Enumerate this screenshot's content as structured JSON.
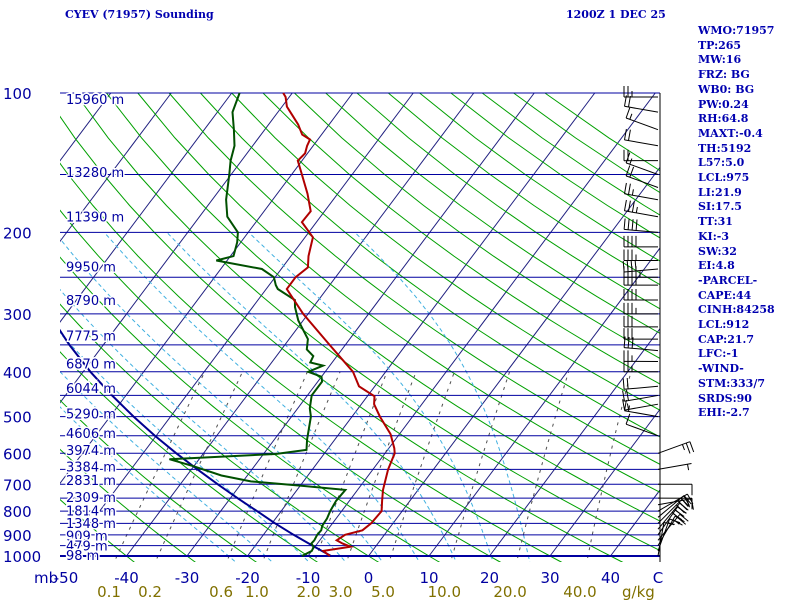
{
  "header": {
    "title": "CYEV (71957) Sounding",
    "time": "1200Z  1 DEC 25"
  },
  "stats": [
    "WMO:71957",
    "TP:265",
    "MW:16",
    "FRZ: BG",
    "WB0: BG",
    "PW:0.24",
    "RH:64.8",
    "MAXT:-0.4",
    "TH:5192",
    "L57:5.0",
    "LCL:975",
    "LI:21.9",
    "SI:17.5",
    "TT:31",
    "KI:-3",
    "SW:32",
    "EI:4.8",
    "-PARCEL-",
    "CAPE:44",
    "CINH:84258",
    "LCL:912",
    "CAP:21.7",
    "LFC:-1",
    "-WIND-",
    "STM:333/7",
    "SRDS:90",
    "EHI:-2.7"
  ],
  "colors": {
    "isobar": "#0000a0",
    "temperature": "#b00000",
    "dewpoint": "#005000",
    "parcel": "#000090",
    "dry_adiabat": "#00a000",
    "moist_adiabat": "#40b0e0",
    "mixing_ratio": "#505050",
    "isotherm": "#202080",
    "mixing_ratio_label": "#807000",
    "label": "#0000a0"
  },
  "chart_data": {
    "type": "skew-t",
    "title": "CYEV (71957) Sounding",
    "pressure_range_mb": [
      1000,
      100
    ],
    "temperature_range_c": [
      -50,
      50
    ],
    "pressure_ticks": [
      100,
      200,
      300,
      400,
      500,
      600,
      700,
      800,
      900,
      1000
    ],
    "pressure_unit": "mb",
    "temperature_ticks": [
      -50,
      -40,
      -30,
      -20,
      -10,
      0,
      10,
      20,
      30,
      40
    ],
    "temperature_axis_end_label": "C",
    "mixing_ratio_ticks": [
      "0.1",
      "0.2",
      "0.6",
      "1.0",
      "2.0",
      "3.0",
      "5.0",
      "10.0",
      "20.0",
      "40.0"
    ],
    "mixing_ratio_unit": "g/kg",
    "heights": [
      {
        "p": 103,
        "label": "15960 m"
      },
      {
        "p": 148,
        "label": "13280 m"
      },
      {
        "p": 185,
        "label": "11390 m"
      },
      {
        "p": 237,
        "label": "9950 m"
      },
      {
        "p": 280,
        "label": "8790 m"
      },
      {
        "p": 334,
        "label": "7775 m"
      },
      {
        "p": 384,
        "label": "6870 m"
      },
      {
        "p": 434,
        "label": "6044 m"
      },
      {
        "p": 492,
        "label": "5290 m"
      },
      {
        "p": 542,
        "label": "4606 m"
      },
      {
        "p": 590,
        "label": "3974 m"
      },
      {
        "p": 640,
        "label": "3384 m"
      },
      {
        "p": 685,
        "label": "2831 m"
      },
      {
        "p": 745,
        "label": "2309 m"
      },
      {
        "p": 798,
        "label": "1814 m"
      },
      {
        "p": 848,
        "label": "1348 m"
      },
      {
        "p": 903,
        "label": "909 m"
      },
      {
        "p": 948,
        "label": "479 m"
      },
      {
        "p": 994,
        "label": "98 m"
      }
    ],
    "temperature_profile": [
      [
        1000,
        -6.4
      ],
      [
        975,
        -8.1
      ],
      [
        955,
        -4.1
      ],
      [
        940,
        -5.8
      ],
      [
        925,
        -7.2
      ],
      [
        900,
        -6.5
      ],
      [
        880,
        -4.2
      ],
      [
        850,
        -3.6
      ],
      [
        800,
        -3.4
      ],
      [
        760,
        -4.6
      ],
      [
        720,
        -5.8
      ],
      [
        650,
        -7.5
      ],
      [
        600,
        -8.4
      ],
      [
        585,
        -9.1
      ],
      [
        545,
        -11.5
      ],
      [
        500,
        -15.4
      ],
      [
        470,
        -17.9
      ],
      [
        452,
        -18.8
      ],
      [
        430,
        -22.6
      ],
      [
        400,
        -25.4
      ],
      [
        350,
        -32.6
      ],
      [
        300,
        -40.8
      ],
      [
        265,
        -46.6
      ],
      [
        250,
        -46.6
      ],
      [
        238,
        -45.8
      ],
      [
        225,
        -47.1
      ],
      [
        205,
        -48.7
      ],
      [
        190,
        -52.4
      ],
      [
        180,
        -52.3
      ],
      [
        165,
        -55.0
      ],
      [
        150,
        -58.3
      ],
      [
        140,
        -60.7
      ],
      [
        135,
        -60.4
      ],
      [
        130,
        -61.0
      ],
      [
        126,
        -61.3
      ],
      [
        123,
        -63.2
      ],
      [
        117,
        -65.1
      ],
      [
        112,
        -67.1
      ],
      [
        107,
        -69.2
      ],
      [
        102,
        -70.6
      ],
      [
        100,
        -71.5
      ]
    ],
    "dewpoint_profile": [
      [
        1000,
        -11.0
      ],
      [
        975,
        -10.0
      ],
      [
        955,
        -10.2
      ],
      [
        940,
        -11.0
      ],
      [
        925,
        -10.9
      ],
      [
        900,
        -11.1
      ],
      [
        880,
        -11.0
      ],
      [
        860,
        -11.4
      ],
      [
        830,
        -11.5
      ],
      [
        800,
        -11.9
      ],
      [
        760,
        -12.2
      ],
      [
        720,
        -12.0
      ],
      [
        705,
        -19.8
      ],
      [
        690,
        -28.7
      ],
      [
        670,
        -34.3
      ],
      [
        640,
        -40.0
      ],
      [
        618,
        -44.9
      ],
      [
        602,
        -28.0
      ],
      [
        590,
        -23.4
      ],
      [
        560,
        -24.6
      ],
      [
        500,
        -26.8
      ],
      [
        480,
        -28.0
      ],
      [
        450,
        -29.3
      ],
      [
        420,
        -29.3
      ],
      [
        410,
        -30.0
      ],
      [
        400,
        -32.8
      ],
      [
        388,
        -31.1
      ],
      [
        382,
        -33.6
      ],
      [
        370,
        -33.9
      ],
      [
        358,
        -35.8
      ],
      [
        340,
        -36.9
      ],
      [
        310,
        -40.8
      ],
      [
        290,
        -43.0
      ],
      [
        280,
        -43.9
      ],
      [
        265,
        -48.1
      ],
      [
        260,
        -48.9
      ],
      [
        250,
        -50.2
      ],
      [
        240,
        -53.2
      ],
      [
        230,
        -61.8
      ],
      [
        225,
        -59.5
      ],
      [
        210,
        -60.6
      ],
      [
        200,
        -61.7
      ],
      [
        185,
        -65.4
      ],
      [
        170,
        -67.7
      ],
      [
        150,
        -70.3
      ],
      [
        140,
        -71.8
      ],
      [
        130,
        -73.0
      ],
      [
        120,
        -75.1
      ],
      [
        110,
        -77.5
      ],
      [
        100,
        -78.7
      ]
    ],
    "parcel_profile": [
      [
        1000,
        -6.2
      ],
      [
        950,
        -10.5
      ],
      [
        900,
        -15.0
      ],
      [
        850,
        -19.5
      ],
      [
        800,
        -24.0
      ],
      [
        750,
        -28.8
      ],
      [
        700,
        -33.8
      ],
      [
        650,
        -39.0
      ],
      [
        600,
        -44.5
      ],
      [
        550,
        -50.2
      ],
      [
        500,
        -56.1
      ],
      [
        450,
        -62.3
      ],
      [
        400,
        -68.8
      ],
      [
        350,
        -75.6
      ],
      [
        300,
        -82.8
      ],
      [
        250,
        -90.1
      ],
      [
        200,
        -97.9
      ],
      [
        170,
        -102.7
      ],
      [
        150,
        -106.3
      ],
      [
        130,
        -109.9
      ],
      [
        115,
        -112.6
      ]
    ],
    "wind_barbs": [
      {
        "p": 1000,
        "dir": 10,
        "kt": 10
      },
      {
        "p": 975,
        "dir": 20,
        "kt": 15
      },
      {
        "p": 950,
        "dir": 30,
        "kt": 20
      },
      {
        "p": 925,
        "dir": 40,
        "kt": 25
      },
      {
        "p": 900,
        "dir": 35,
        "kt": 30
      },
      {
        "p": 875,
        "dir": 40,
        "kt": 35
      },
      {
        "p": 850,
        "dir": 45,
        "kt": 30
      },
      {
        "p": 825,
        "dir": 50,
        "kt": 25
      },
      {
        "p": 800,
        "dir": 60,
        "kt": 20
      },
      {
        "p": 775,
        "dir": 80,
        "kt": 15
      },
      {
        "p": 750,
        "dir": 90,
        "kt": 10
      },
      {
        "p": 700,
        "dir": 90,
        "kt": 10
      },
      {
        "p": 650,
        "dir": 80,
        "kt": 5
      },
      {
        "p": 600,
        "dir": 70,
        "kt": 25
      },
      {
        "p": 550,
        "dir": 290,
        "kt": 10
      },
      {
        "p": 500,
        "dir": 280,
        "kt": 15
      },
      {
        "p": 470,
        "dir": 260,
        "kt": 15
      },
      {
        "p": 450,
        "dir": 260,
        "kt": 20
      },
      {
        "p": 430,
        "dir": 265,
        "kt": 20
      },
      {
        "p": 400,
        "dir": 270,
        "kt": 25
      },
      {
        "p": 380,
        "dir": 270,
        "kt": 25
      },
      {
        "p": 360,
        "dir": 275,
        "kt": 30
      },
      {
        "p": 340,
        "dir": 270,
        "kt": 30
      },
      {
        "p": 320,
        "dir": 270,
        "kt": 30
      },
      {
        "p": 300,
        "dir": 270,
        "kt": 35
      },
      {
        "p": 280,
        "dir": 270,
        "kt": 40
      },
      {
        "p": 260,
        "dir": 270,
        "kt": 40
      },
      {
        "p": 250,
        "dir": 270,
        "kt": 45
      },
      {
        "p": 240,
        "dir": 265,
        "kt": 40
      },
      {
        "p": 230,
        "dir": 270,
        "kt": 35
      },
      {
        "p": 215,
        "dir": 270,
        "kt": 40
      },
      {
        "p": 200,
        "dir": 275,
        "kt": 40
      },
      {
        "p": 185,
        "dir": 280,
        "kt": 35
      },
      {
        "p": 170,
        "dir": 280,
        "kt": 25
      },
      {
        "p": 160,
        "dir": 290,
        "kt": 20
      },
      {
        "p": 150,
        "dir": 290,
        "kt": 15
      },
      {
        "p": 140,
        "dir": 270,
        "kt": 20
      },
      {
        "p": 130,
        "dir": 280,
        "kt": 20
      },
      {
        "p": 120,
        "dir": 290,
        "kt": 15
      },
      {
        "p": 110,
        "dir": 280,
        "kt": 20
      },
      {
        "p": 102,
        "dir": 270,
        "kt": 25
      }
    ]
  }
}
